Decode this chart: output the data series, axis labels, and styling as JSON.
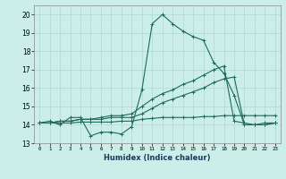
{
  "title": "",
  "xlabel": "Humidex (Indice chaleur)",
  "ylabel": "",
  "bg_color": "#cceee8",
  "grid_color": "#b0d8d0",
  "line_color": "#1a6b5a",
  "xlim": [
    -0.5,
    23.5
  ],
  "ylim": [
    13,
    20.5
  ],
  "yticks": [
    13,
    14,
    15,
    16,
    17,
    18,
    19,
    20
  ],
  "xticks": [
    0,
    1,
    2,
    3,
    4,
    5,
    6,
    7,
    8,
    9,
    10,
    11,
    12,
    13,
    14,
    15,
    16,
    17,
    18,
    19,
    20,
    21,
    22,
    23
  ],
  "series": [
    [
      14.1,
      14.2,
      14.0,
      14.4,
      14.4,
      13.4,
      13.6,
      13.6,
      13.5,
      13.9,
      15.9,
      19.5,
      20.0,
      19.5,
      19.1,
      18.8,
      18.6,
      17.4,
      16.8,
      15.6,
      14.0,
      14.0,
      14.1,
      14.1
    ],
    [
      14.1,
      14.1,
      14.1,
      14.1,
      14.15,
      14.15,
      14.15,
      14.15,
      14.2,
      14.2,
      14.3,
      14.35,
      14.4,
      14.4,
      14.4,
      14.4,
      14.45,
      14.45,
      14.5,
      14.5,
      14.5,
      14.5,
      14.5,
      14.5
    ],
    [
      14.1,
      14.1,
      14.2,
      14.2,
      14.3,
      14.3,
      14.3,
      14.4,
      14.4,
      14.4,
      14.6,
      14.9,
      15.2,
      15.4,
      15.6,
      15.8,
      16.0,
      16.3,
      16.5,
      16.6,
      14.0,
      14.0,
      14.0,
      14.1
    ],
    [
      14.1,
      14.1,
      14.2,
      14.2,
      14.3,
      14.3,
      14.4,
      14.5,
      14.5,
      14.6,
      15.0,
      15.4,
      15.7,
      15.9,
      16.2,
      16.4,
      16.7,
      17.0,
      17.2,
      14.2,
      14.1,
      14.0,
      14.0,
      14.1
    ]
  ],
  "figsize": [
    3.2,
    2.0
  ],
  "dpi": 100
}
